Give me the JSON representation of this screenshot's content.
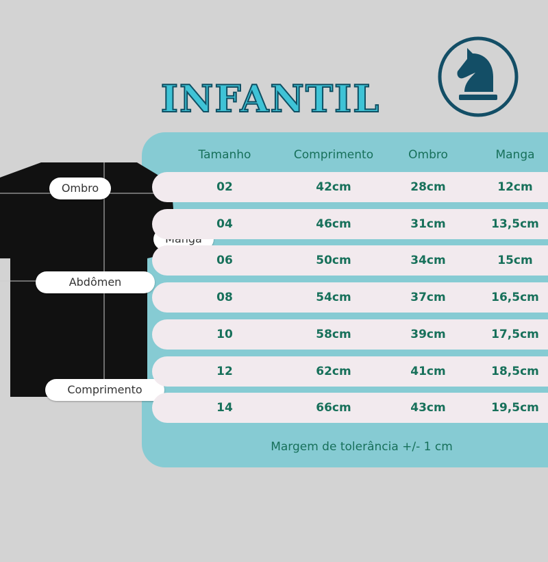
{
  "title": "INFANTIL",
  "logo": {
    "icon": "chess-knight-icon",
    "color": "#134e66"
  },
  "colors": {
    "background": "#d3d3d3",
    "panel": "#86cbd3",
    "row": "#f2eaee",
    "text": "#17705a",
    "title": "#3fc3d6"
  },
  "shirt_labels": {
    "ombro": "Ombro",
    "manga": "Manga",
    "abdomen": "Abdômen",
    "comprimento": "Comprimento"
  },
  "table": {
    "headers": [
      "Tamanho",
      "Comprimento",
      "Ombro",
      "Manga"
    ],
    "rows": [
      [
        "02",
        "42cm",
        "28cm",
        "12cm"
      ],
      [
        "04",
        "46cm",
        "31cm",
        "13,5cm"
      ],
      [
        "06",
        "50cm",
        "34cm",
        "15cm"
      ],
      [
        "08",
        "54cm",
        "37cm",
        "16,5cm"
      ],
      [
        "10",
        "58cm",
        "39cm",
        "17,5cm"
      ],
      [
        "12",
        "62cm",
        "41cm",
        "18,5cm"
      ],
      [
        "14",
        "66cm",
        "43cm",
        "19,5cm"
      ]
    ],
    "footer": "Margem de tolerância +/-  1 cm"
  }
}
